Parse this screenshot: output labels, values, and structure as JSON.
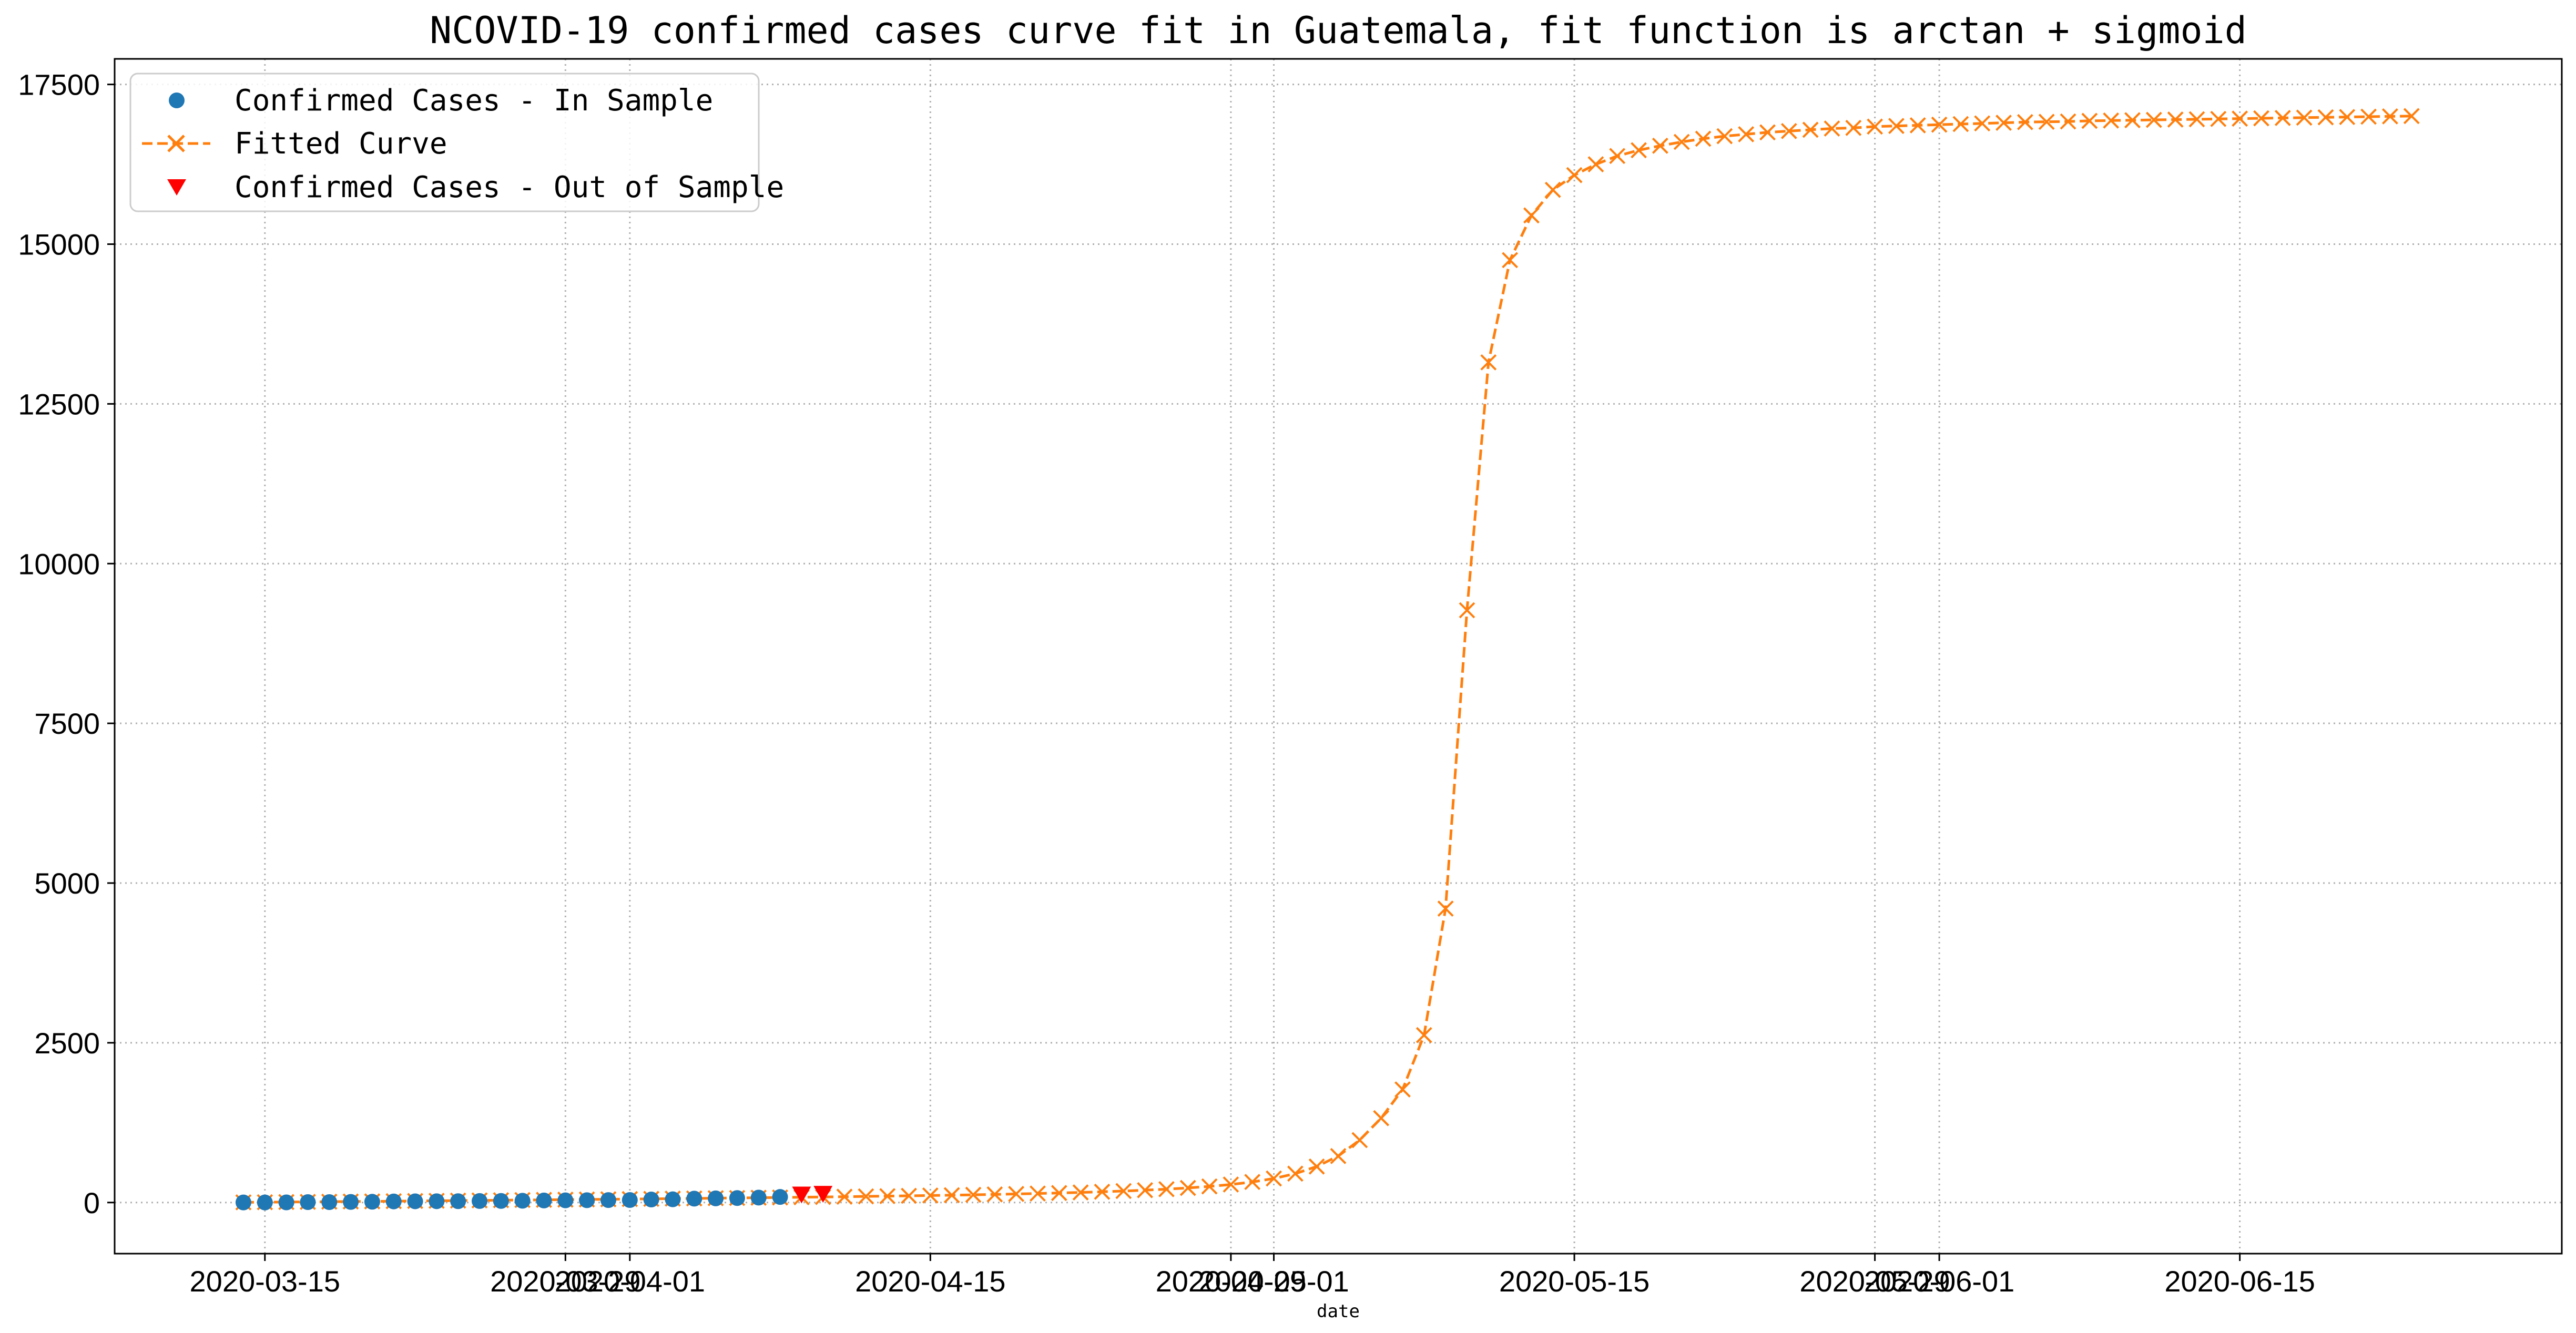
{
  "chart_data": {
    "type": "line",
    "title": "NCOVID-19 confirmed cases curve fit in Guatemala, fit function is arctan + sigmoid",
    "xlabel": "date",
    "ylabel": "",
    "xlim": [
      "2020-03-08",
      "2020-06-30"
    ],
    "ylim": [
      -800,
      17900
    ],
    "grid": true,
    "legend_position": "top-left",
    "x_ticks": [
      {
        "date": "2020-03-15",
        "label": "2020-03-15"
      },
      {
        "date": "2020-03-29",
        "label": "2020-03-29"
      },
      {
        "date": "2020-04-01",
        "label": "2020-04-01"
      },
      {
        "date": "2020-04-15",
        "label": "2020-04-15"
      },
      {
        "date": "2020-04-29",
        "label": "2020-04-29"
      },
      {
        "date": "2020-05-01",
        "label": "2020-05-01"
      },
      {
        "date": "2020-05-15",
        "label": "2020-05-15"
      },
      {
        "date": "2020-05-29",
        "label": "2020-05-29"
      },
      {
        "date": "2020-06-01",
        "label": "2020-06-01"
      },
      {
        "date": "2020-06-15",
        "label": "2020-06-15"
      }
    ],
    "y_ticks": [
      {
        "value": 0,
        "label": "0"
      },
      {
        "value": 2500,
        "label": "2500"
      },
      {
        "value": 5000,
        "label": "5000"
      },
      {
        "value": 7500,
        "label": "7500"
      },
      {
        "value": 10000,
        "label": "10000"
      },
      {
        "value": 12500,
        "label": "12500"
      },
      {
        "value": 15000,
        "label": "15000"
      },
      {
        "value": 17500,
        "label": "17500"
      }
    ],
    "series": [
      {
        "name": "Confirmed Cases - In Sample",
        "marker": "circle",
        "color": "#1f77b4",
        "x": [
          "2020-03-14",
          "2020-03-15",
          "2020-03-16",
          "2020-03-17",
          "2020-03-18",
          "2020-03-19",
          "2020-03-20",
          "2020-03-21",
          "2020-03-22",
          "2020-03-23",
          "2020-03-24",
          "2020-03-25",
          "2020-03-26",
          "2020-03-27",
          "2020-03-28",
          "2020-03-29",
          "2020-03-30",
          "2020-03-31",
          "2020-04-01",
          "2020-04-02",
          "2020-04-03",
          "2020-04-04",
          "2020-04-05",
          "2020-04-06",
          "2020-04-07",
          "2020-04-08"
        ],
        "y": [
          1,
          1,
          2,
          6,
          6,
          9,
          12,
          17,
          19,
          20,
          21,
          24,
          25,
          28,
          32,
          34,
          36,
          38,
          39,
          47,
          50,
          61,
          65,
          70,
          77,
          87
        ]
      },
      {
        "name": "Fitted Curve",
        "marker": "x",
        "line_style": "dashed",
        "color": "#ff7f0e",
        "x": [
          "2020-03-14",
          "2020-03-15",
          "2020-03-16",
          "2020-03-17",
          "2020-03-18",
          "2020-03-19",
          "2020-03-20",
          "2020-03-21",
          "2020-03-22",
          "2020-03-23",
          "2020-03-24",
          "2020-03-25",
          "2020-03-26",
          "2020-03-27",
          "2020-03-28",
          "2020-03-29",
          "2020-03-30",
          "2020-03-31",
          "2020-04-01",
          "2020-04-02",
          "2020-04-03",
          "2020-04-04",
          "2020-04-05",
          "2020-04-06",
          "2020-04-07",
          "2020-04-08",
          "2020-04-09",
          "2020-04-10",
          "2020-04-11",
          "2020-04-12",
          "2020-04-13",
          "2020-04-14",
          "2020-04-15",
          "2020-04-16",
          "2020-04-17",
          "2020-04-18",
          "2020-04-19",
          "2020-04-20",
          "2020-04-21",
          "2020-04-22",
          "2020-04-23",
          "2020-04-24",
          "2020-04-25",
          "2020-04-26",
          "2020-04-27",
          "2020-04-28",
          "2020-04-29",
          "2020-04-30",
          "2020-05-01",
          "2020-05-02",
          "2020-05-03",
          "2020-05-04",
          "2020-05-05",
          "2020-05-06",
          "2020-05-07",
          "2020-05-08",
          "2020-05-09",
          "2020-05-10",
          "2020-05-11",
          "2020-05-12",
          "2020-05-13",
          "2020-05-14",
          "2020-05-15",
          "2020-05-16",
          "2020-05-17",
          "2020-05-18",
          "2020-05-19",
          "2020-05-20",
          "2020-05-21",
          "2020-05-22",
          "2020-05-23",
          "2020-05-24",
          "2020-05-25",
          "2020-05-26",
          "2020-05-27",
          "2020-05-28",
          "2020-05-29",
          "2020-05-30",
          "2020-05-31",
          "2020-06-01",
          "2020-06-02",
          "2020-06-03",
          "2020-06-04",
          "2020-06-05",
          "2020-06-06",
          "2020-06-07",
          "2020-06-08",
          "2020-06-09",
          "2020-06-10",
          "2020-06-11",
          "2020-06-12",
          "2020-06-13",
          "2020-06-14",
          "2020-06-15",
          "2020-06-16",
          "2020-06-17",
          "2020-06-18",
          "2020-06-19",
          "2020-06-20",
          "2020-06-21",
          "2020-06-22",
          "2020-06-23"
        ],
        "y": [
          3,
          5,
          8,
          10,
          13,
          16,
          18,
          21,
          24,
          27,
          30,
          33,
          36,
          39,
          42,
          45,
          48,
          51,
          54,
          57,
          61,
          64,
          68,
          71,
          75,
          79,
          83,
          87,
          91,
          96,
          100,
          105,
          110,
          115,
          121,
          127,
          134,
          141,
          149,
          158,
          168,
          180,
          193,
          209,
          228,
          252,
          282,
          322,
          376,
          452,
          563,
          727,
          977,
          1320,
          1770,
          2620,
          4600,
          9270,
          13150,
          14750,
          15450,
          15850,
          16080,
          16250,
          16380,
          16470,
          16540,
          16600,
          16650,
          16690,
          16720,
          16750,
          16770,
          16790,
          16810,
          16820,
          16840,
          16850,
          16860,
          16870,
          16880,
          16890,
          16900,
          16910,
          16915,
          16920,
          16930,
          16935,
          16940,
          16945,
          16950,
          16955,
          16960,
          16965,
          16970,
          16975,
          16980,
          16985,
          16990,
          16995,
          17000,
          17005
        ]
      },
      {
        "name": "Confirmed Cases - Out of Sample",
        "marker": "triangle-down",
        "color": "#ff0000",
        "x": [
          "2020-04-09",
          "2020-04-10"
        ],
        "y": [
          126,
          137
        ]
      }
    ]
  }
}
